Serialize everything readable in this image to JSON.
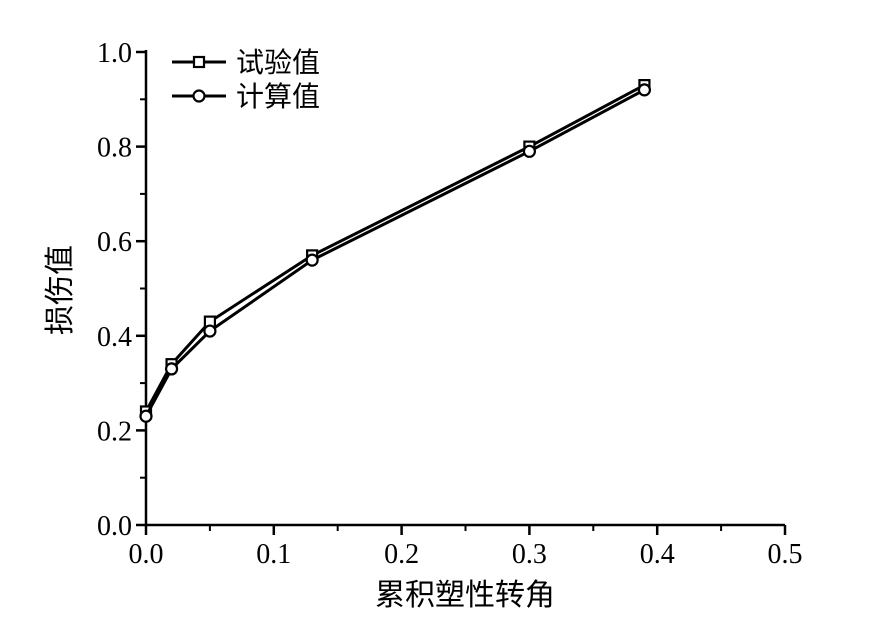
{
  "chart_data": {
    "type": "line",
    "title": "",
    "xlabel": "累积塑性转角",
    "ylabel": "损伤值",
    "xlim": [
      0,
      0.5
    ],
    "ylim": [
      0,
      1.0
    ],
    "xticks": [
      "0.0",
      "0.1",
      "0.2",
      "0.3",
      "0.4",
      "0.5"
    ],
    "yticks": [
      "0.0",
      "0.2",
      "0.4",
      "0.6",
      "0.8",
      "1.0"
    ],
    "grid": false,
    "legend_position": "top-left",
    "series": [
      {
        "name": "试验值",
        "marker": "square",
        "x": [
          0,
          0.02,
          0.05,
          0.13,
          0.3,
          0.39
        ],
        "y": [
          0.24,
          0.34,
          0.43,
          0.57,
          0.8,
          0.93
        ]
      },
      {
        "name": "计算值",
        "marker": "circle",
        "x": [
          0,
          0.02,
          0.05,
          0.13,
          0.3,
          0.39
        ],
        "y": [
          0.23,
          0.33,
          0.41,
          0.56,
          0.79,
          0.92
        ]
      }
    ],
    "colors": {
      "line": "#000000",
      "background": "#ffffff"
    }
  }
}
